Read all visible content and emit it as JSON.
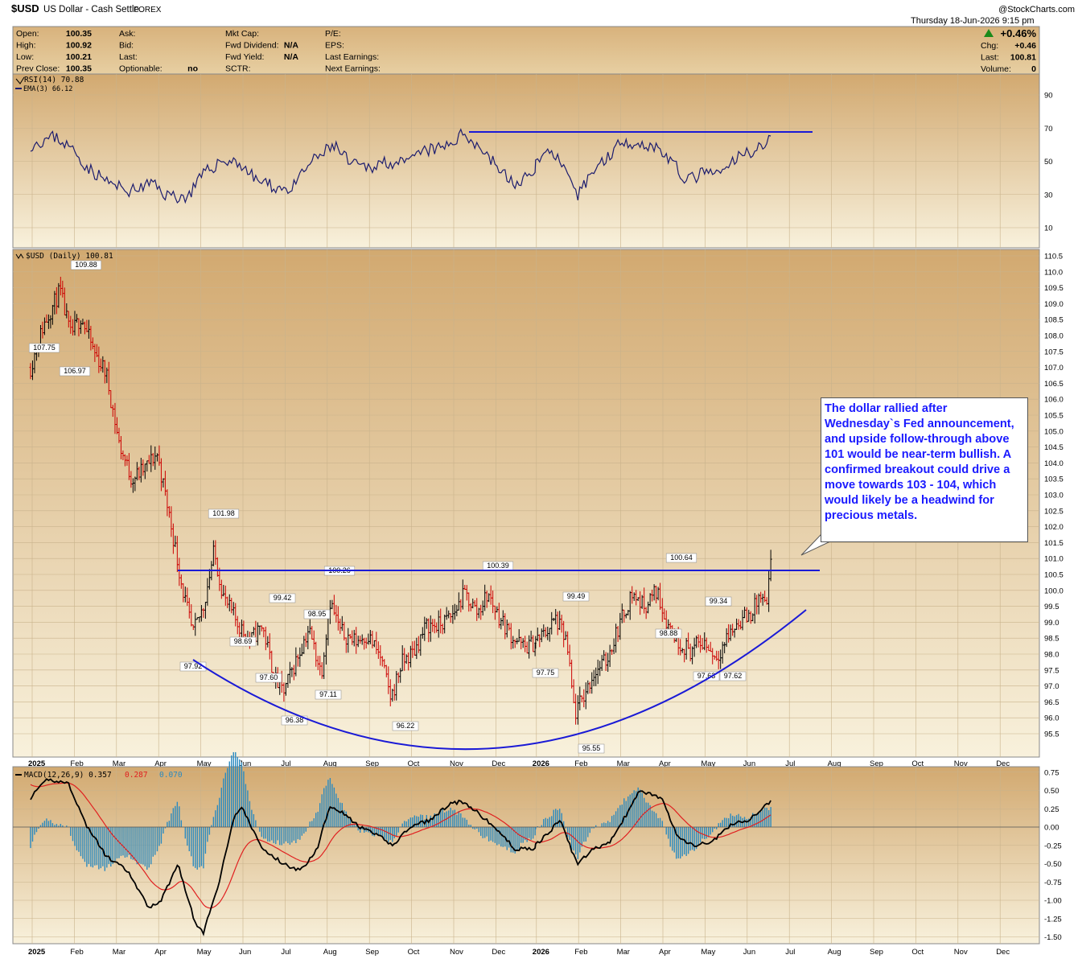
{
  "header": {
    "symbol": "$USD",
    "name": "US Dollar - Cash Settle",
    "exchange": "FOREX",
    "datetime": "Thursday  18-Jun-2026  9:15 pm",
    "copyright": "@StockCharts.com",
    "change_pct": "+0.46%",
    "up_color": "#1a8a1a"
  },
  "quote": {
    "col1": [
      {
        "label": "Open:",
        "value": "100.35"
      },
      {
        "label": "High:",
        "value": "100.92"
      },
      {
        "label": "Low:",
        "value": "100.21"
      },
      {
        "label": "Prev Close:",
        "value": "100.35"
      }
    ],
    "col2": [
      {
        "label": "Ask:",
        "value": ""
      },
      {
        "label": "Bid:",
        "value": ""
      },
      {
        "label": "Last:",
        "value": ""
      },
      {
        "label": "Optionable:",
        "value": "no"
      }
    ],
    "col3": [
      {
        "label": "Mkt Cap:",
        "value": ""
      },
      {
        "label": "Fwd Dividend:",
        "value": "N/A"
      },
      {
        "label": "Fwd Yield:",
        "value": "N/A"
      },
      {
        "label": "SCTR:",
        "value": ""
      }
    ],
    "col4": [
      {
        "label": "P/E:",
        "value": ""
      },
      {
        "label": "EPS:",
        "value": ""
      },
      {
        "label": "Last Earnings:",
        "value": ""
      },
      {
        "label": "Next Earnings:",
        "value": ""
      }
    ],
    "right": [
      {
        "label": "Chg:",
        "value": "+0.46"
      },
      {
        "label": "Last:",
        "value": "100.81"
      },
      {
        "label": "Volume:",
        "value": "0"
      }
    ]
  },
  "chart_data": [
    {
      "type": "line",
      "panel": "rsi",
      "legend": [
        "RSI(14) 70.88",
        "EMA(3) 66.12"
      ],
      "yticks": [
        90,
        70,
        50,
        30,
        10
      ],
      "ylim": [
        0,
        100
      ],
      "resistance_line": 67,
      "series": [
        {
          "name": "RSI(14)",
          "x": [
            "2025-01",
            "2025-02",
            "2025-03",
            "2025-04",
            "2025-05",
            "2025-06",
            "2025-07",
            "2025-08",
            "2025-09",
            "2025-10",
            "2025-11",
            "2025-12",
            "2026-01",
            "2026-02",
            "2026-03",
            "2026-04",
            "2026-05",
            "2026-06"
          ],
          "values": [
            62,
            58,
            38,
            33,
            48,
            45,
            35,
            60,
            45,
            48,
            67,
            40,
            58,
            28,
            65,
            58,
            45,
            71
          ]
        }
      ]
    },
    {
      "type": "bar",
      "panel": "price",
      "legend": "$USD (Daily) 100.81",
      "ylim": [
        95.0,
        110.5
      ],
      "yticks": [
        "110.5",
        "110.0",
        "109.5",
        "109.0",
        "108.5",
        "108.0",
        "107.5",
        "107.0",
        "106.5",
        "106.0",
        "105.5",
        "105.0",
        "104.5",
        "104.0",
        "103.5",
        "103.0",
        "102.5",
        "102.0",
        "101.5",
        "101.0",
        "100.5",
        "100.0",
        "99.5",
        "99.0",
        "98.5",
        "98.0",
        "97.5",
        "97.0",
        "96.5",
        "96.0",
        "95.5"
      ],
      "x": [
        "2025-01",
        "2025-02",
        "2025-03",
        "2025-04",
        "2025-05",
        "2025-06",
        "2025-07",
        "2025-08",
        "2025-09",
        "2025-10",
        "2025-11",
        "2025-12",
        "2026-01",
        "2026-02",
        "2026-03",
        "2026-04",
        "2026-05",
        "2026-06"
      ],
      "values": [
        108.5,
        107.5,
        104.0,
        103.5,
        100.5,
        98.8,
        97.0,
        98.5,
        97.8,
        98.8,
        100.2,
        99.0,
        98.5,
        96.5,
        99.8,
        99.5,
        98.2,
        100.81
      ],
      "price_labels": [
        "109.88",
        "107.75",
        "106.97",
        "101.98",
        "98.69",
        "97.92",
        "99.42",
        "97.60",
        "96.38",
        "98.95",
        "97.11",
        "100.26",
        "96.22",
        "100.39",
        "97.75",
        "99.49",
        "95.55",
        "100.64",
        "98.88",
        "99.34",
        "97.63",
        "97.62"
      ],
      "resistance_level": 100.6,
      "x_labels": [
        "2025",
        "Feb",
        "Mar",
        "Apr",
        "May",
        "Jun",
        "Jul",
        "Aug",
        "Sep",
        "Oct",
        "Nov",
        "Dec",
        "2026",
        "Feb",
        "Mar",
        "Apr",
        "May",
        "Jun",
        "Jul",
        "Aug",
        "Sep",
        "Oct",
        "Nov",
        "Dec"
      ]
    },
    {
      "type": "line",
      "panel": "macd",
      "legend": {
        "main": "MACD(12,26,9) 0.357",
        "signal": "0.287",
        "hist": "0.070"
      },
      "ylim": [
        -1.6,
        0.8
      ],
      "yticks": [
        "0.75",
        "0.50",
        "0.25",
        "0.00",
        "-0.25",
        "-0.50",
        "-0.75",
        "-1.00",
        "-1.25",
        "-1.50"
      ],
      "series": [
        {
          "name": "MACD",
          "x": [
            "2025-01",
            "2025-02",
            "2025-03",
            "2025-04",
            "2025-05",
            "2025-06",
            "2025-07",
            "2025-08",
            "2025-09",
            "2025-10",
            "2025-11",
            "2025-12",
            "2026-01",
            "2026-02",
            "2026-03",
            "2026-04",
            "2026-05",
            "2026-06"
          ],
          "values": [
            0.55,
            -0.2,
            -1.1,
            -0.6,
            -1.4,
            0.25,
            -0.55,
            0.2,
            -0.15,
            0.1,
            0.35,
            -0.1,
            0.15,
            -0.5,
            0.5,
            -0.2,
            -0.05,
            0.357
          ]
        },
        {
          "name": "Signal",
          "values": [
            0.65,
            0.05,
            -0.95,
            -0.5,
            -1.2,
            0.0,
            -0.4,
            0.05,
            -0.05,
            0.05,
            0.25,
            0.05,
            0.05,
            -0.3,
            0.2,
            0.1,
            -0.1,
            0.287
          ]
        }
      ]
    }
  ],
  "annotation": "The dollar rallied after Wednesday`s Fed announcement, and upside follow-through above 101 would be near-term bullish. A confirmed breakout could drive a move towards 103 - 104, which would likely be a headwind for precious metals.",
  "colors": {
    "panel_top": "#d6b078",
    "panel_bottom": "#f7efd8",
    "trend": "#1a1ad6",
    "rsi": "#1c1c6e",
    "up": "#000000",
    "down": "#cc0000",
    "macd": "#000000",
    "signal": "#e02020",
    "hist": "#2a8ac0"
  }
}
